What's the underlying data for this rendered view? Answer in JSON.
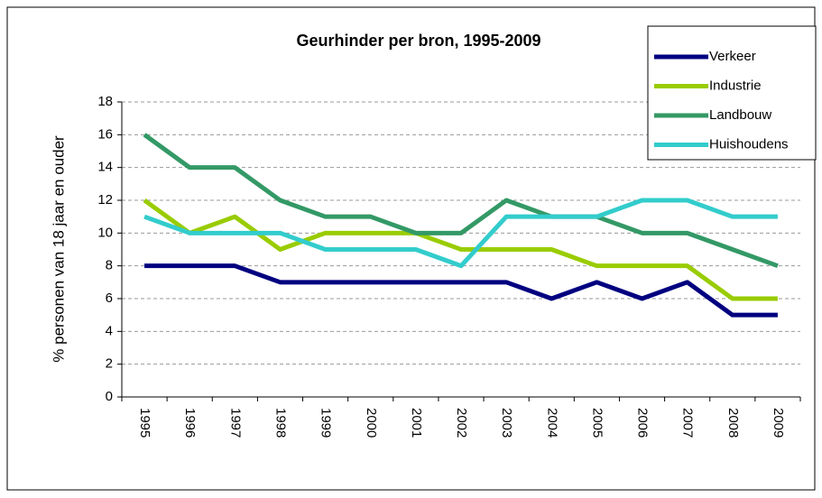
{
  "chart_data": {
    "type": "line",
    "title": "Geurhinder per bron, 1995-2009",
    "y_label": "% personen van 18 jaar en ouder",
    "categories": [
      "1995",
      "1996",
      "1997",
      "1998",
      "1999",
      "2000",
      "2001",
      "2002",
      "2003",
      "2004",
      "2005",
      "2006",
      "2007",
      "2008",
      "2009"
    ],
    "series": [
      {
        "name": "Verkeer",
        "color": "#000080",
        "values": [
          8,
          8,
          8,
          7,
          7,
          7,
          7,
          7,
          7,
          6,
          7,
          6,
          7,
          5,
          5
        ]
      },
      {
        "name": "Industrie",
        "color": "#99cc00",
        "values": [
          12,
          10,
          11,
          9,
          10,
          10,
          10,
          9,
          9,
          9,
          8,
          8,
          8,
          6,
          6
        ]
      },
      {
        "name": "Landbouw",
        "color": "#339966",
        "values": [
          16,
          14,
          14,
          12,
          11,
          11,
          10,
          10,
          12,
          11,
          11,
          10,
          10,
          9,
          8
        ]
      },
      {
        "name": "Huishoudens",
        "color": "#33cccc",
        "values": [
          11,
          10,
          10,
          10,
          9,
          9,
          9,
          8,
          11,
          11,
          11,
          12,
          12,
          11,
          11
        ]
      }
    ],
    "ylim": [
      0,
      18
    ],
    "yticks": [
      0,
      2,
      4,
      6,
      8,
      10,
      12,
      14,
      16,
      18
    ],
    "grid": true,
    "legend": "top-right"
  }
}
